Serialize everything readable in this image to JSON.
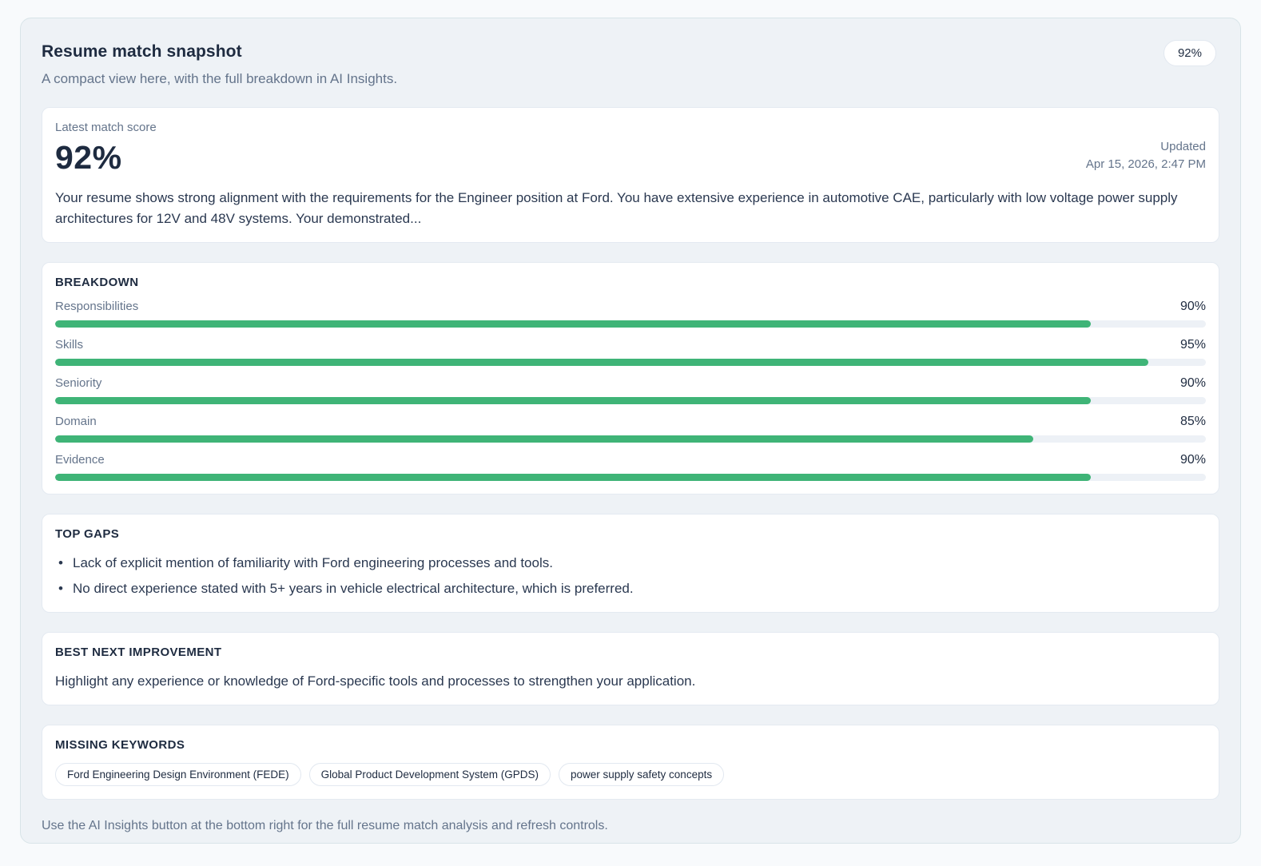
{
  "colors": {
    "accent_green": "#3fb477",
    "panel_bg": "#eef2f6",
    "card_bg": "#ffffff",
    "muted_text": "#64748b",
    "dark_text": "#1e2b40"
  },
  "header": {
    "title": "Resume match snapshot",
    "subtitle": "A compact view here, with the full breakdown in AI Insights.",
    "badge": "92%"
  },
  "score": {
    "label": "Latest match score",
    "value": "92%",
    "updated_label": "Updated",
    "updated_at": "Apr 15, 2026, 2:47 PM",
    "summary": "Your resume shows strong alignment with the requirements for the Engineer position at Ford. You have extensive experience in automotive CAE, particularly with low voltage power supply architectures for 12V and 48V systems. Your demonstrated..."
  },
  "breakdown": {
    "heading": "BREAKDOWN",
    "items": [
      {
        "label": "Responsibilities",
        "value": "90%",
        "percent": 90
      },
      {
        "label": "Skills",
        "value": "95%",
        "percent": 95
      },
      {
        "label": "Seniority",
        "value": "90%",
        "percent": 90
      },
      {
        "label": "Domain",
        "value": "85%",
        "percent": 85
      },
      {
        "label": "Evidence",
        "value": "90%",
        "percent": 90
      }
    ]
  },
  "top_gaps": {
    "heading": "TOP GAPS",
    "items": [
      "Lack of explicit mention of familiarity with Ford engineering processes and tools.",
      "No direct experience stated with 5+ years in vehicle electrical architecture, which is preferred."
    ]
  },
  "best_next_improvement": {
    "heading": "BEST NEXT IMPROVEMENT",
    "text": "Highlight any experience or knowledge of Ford-specific tools and processes to strengthen your application."
  },
  "missing_keywords": {
    "heading": "MISSING KEYWORDS",
    "items": [
      "Ford Engineering Design Environment (FEDE)",
      "Global Product Development System (GPDS)",
      "power supply safety concepts"
    ]
  },
  "footer": {
    "note": "Use the AI Insights button at the bottom right for the full resume match analysis and refresh controls."
  }
}
